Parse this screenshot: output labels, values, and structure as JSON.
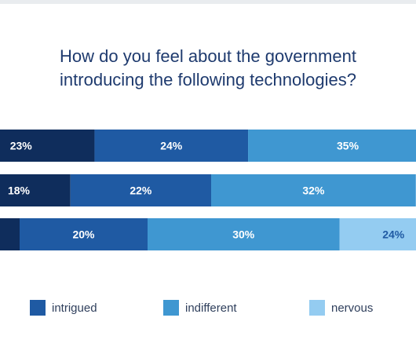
{
  "title_lines": [
    "How do you feel about the government",
    "introducing the following technologies?"
  ],
  "colors": {
    "segment_fills": [
      "#0f2d5c",
      "#1f5aa3",
      "#3f97d1",
      "#94ccf1"
    ],
    "label_dark": "#ffffff",
    "label_light": "#1f5aa3",
    "title": "#1e3a6e"
  },
  "legend": {
    "items": [
      {
        "label": "intrigued",
        "color": "#1f5aa3"
      },
      {
        "label": "indifferent",
        "color": "#3f97d1"
      },
      {
        "label": "nervous",
        "color": "#94ccf1"
      }
    ]
  },
  "chart_data": {
    "type": "bar",
    "orientation": "horizontal",
    "stacked": true,
    "unit": "%",
    "rows": [
      {
        "values": [
          23,
          24,
          35,
          null
        ],
        "labels": [
          "23%",
          "24%",
          "35%",
          ""
        ]
      },
      {
        "values": [
          18,
          22,
          32,
          null
        ],
        "labels": [
          "18%",
          "22%",
          "32%",
          ""
        ]
      },
      {
        "values": [
          null,
          20,
          30,
          24
        ],
        "labels": [
          "",
          "20%",
          "30%",
          "24%"
        ]
      }
    ],
    "legend_placement": "bottom",
    "grid": false
  }
}
